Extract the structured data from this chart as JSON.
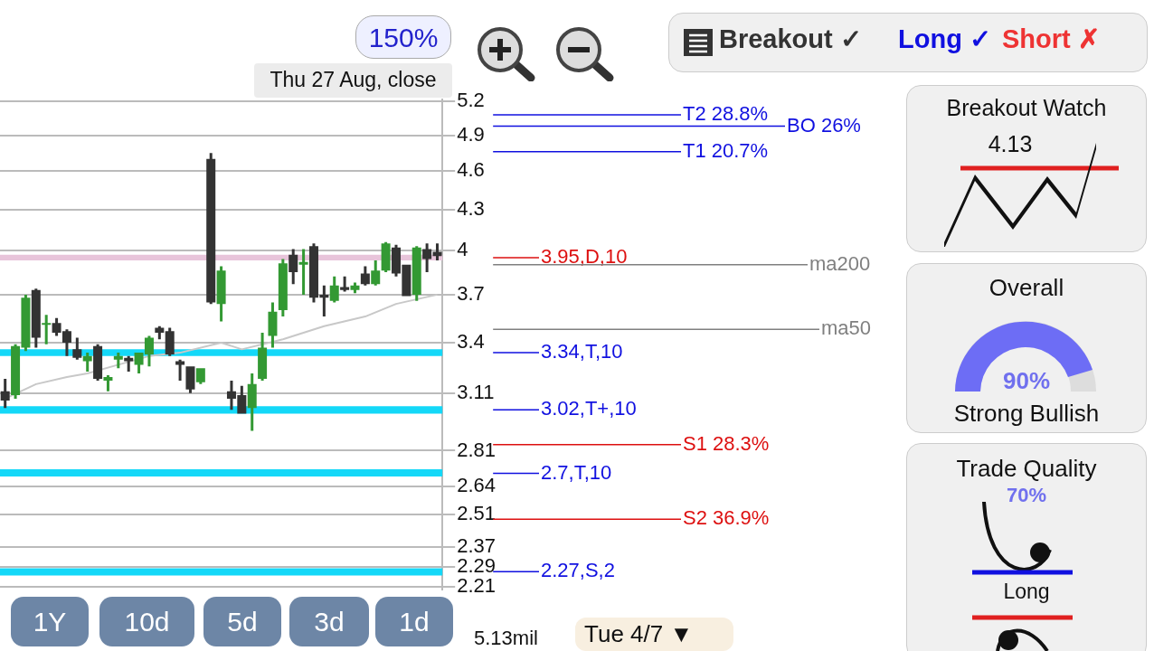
{
  "chart_data": [
    {
      "type": "candlestick",
      "categories": [
        null,
        null,
        null,
        null,
        null,
        null,
        null,
        null,
        null,
        null,
        null,
        null,
        null,
        null,
        null,
        null,
        null,
        null,
        null,
        null,
        null,
        null,
        null,
        null,
        null,
        null,
        null,
        null,
        null,
        null,
        null,
        null,
        null,
        null,
        null,
        null,
        null,
        null,
        null,
        null,
        null,
        null,
        null
      ],
      "ohlc": [
        [
          3.12,
          3.19,
          3.03,
          3.07
        ],
        [
          3.1,
          3.39,
          3.08,
          3.38
        ],
        [
          3.37,
          3.7,
          3.35,
          3.68
        ],
        [
          3.73,
          3.74,
          3.37,
          3.43
        ],
        [
          3.51,
          3.57,
          3.39,
          3.52
        ],
        [
          3.52,
          3.55,
          3.44,
          3.46
        ],
        [
          3.47,
          3.48,
          3.32,
          3.4
        ],
        [
          3.36,
          3.43,
          3.3,
          3.31
        ],
        [
          3.29,
          3.34,
          3.23,
          3.32
        ],
        [
          3.38,
          3.39,
          3.18,
          3.19
        ],
        [
          3.18,
          3.21,
          3.12,
          3.2
        ],
        [
          3.3,
          3.34,
          3.25,
          3.32
        ],
        [
          3.31,
          3.32,
          3.23,
          3.29
        ],
        [
          3.27,
          3.34,
          3.22,
          3.34
        ],
        [
          3.33,
          3.44,
          3.26,
          3.43
        ],
        [
          3.49,
          3.5,
          3.42,
          3.46
        ],
        [
          3.47,
          3.49,
          3.32,
          3.33
        ],
        [
          3.29,
          3.3,
          3.18,
          3.27
        ],
        [
          3.26,
          3.26,
          3.11,
          3.13
        ],
        [
          3.17,
          3.25,
          3.16,
          3.25
        ],
        [
          4.7,
          4.75,
          3.64,
          3.65
        ],
        [
          3.64,
          3.89,
          3.53,
          3.86
        ],
        [
          3.12,
          3.18,
          3.02,
          3.08
        ],
        [
          3.1,
          3.15,
          3.0,
          3.0
        ],
        [
          3.03,
          3.22,
          2.91,
          3.16
        ],
        [
          3.19,
          3.46,
          3.18,
          3.37
        ],
        [
          3.44,
          3.65,
          3.37,
          3.59
        ],
        [
          3.6,
          3.94,
          3.56,
          3.91
        ],
        [
          3.97,
          4.01,
          3.77,
          3.85
        ],
        [
          3.9,
          4.01,
          3.7,
          3.92
        ],
        [
          4.03,
          4.05,
          3.65,
          3.68
        ],
        [
          3.7,
          3.76,
          3.56,
          3.68
        ],
        [
          3.66,
          3.82,
          3.65,
          3.76
        ],
        [
          3.75,
          3.82,
          3.72,
          3.73
        ],
        [
          3.73,
          3.78,
          3.71,
          3.76
        ],
        [
          3.84,
          3.89,
          3.76,
          3.77
        ],
        [
          3.77,
          3.93,
          3.76,
          3.86
        ],
        [
          3.86,
          4.06,
          3.85,
          4.05
        ],
        [
          4.02,
          4.04,
          3.82,
          3.84
        ],
        [
          3.9,
          3.9,
          3.69,
          3.69
        ],
        [
          3.7,
          4.03,
          3.66,
          4.02
        ],
        [
          4.01,
          4.05,
          3.85,
          3.94
        ],
        [
          3.99,
          4.05,
          3.93,
          3.96
        ]
      ],
      "colors": [
        "#333333",
        "#339933",
        "#339933",
        "#333333",
        "#339933",
        "#333333",
        "#333333",
        "#333333",
        "#339933",
        "#333333",
        "#339933",
        "#339933",
        "#333333",
        "#339933",
        "#339933",
        "#333333",
        "#333333",
        "#333333",
        "#333333",
        "#339933",
        "#333333",
        "#339933",
        "#333333",
        "#333333",
        "#339933",
        "#339933",
        "#339933",
        "#339933",
        "#333333",
        "#339933",
        "#333333",
        "#333333",
        "#339933",
        "#333333",
        "#339933",
        "#333333",
        "#339933",
        "#339933",
        "#333333",
        "#333333",
        "#339933",
        "#333333",
        "#333333"
      ],
      "series": [
        {
          "type": "line",
          "color": "#c8c8c8",
          "values": [
            3.08,
            null,
            null,
            3.16,
            null,
            null,
            3.2,
            null,
            3.22,
            null,
            null,
            3.27,
            null,
            null,
            3.32,
            null,
            null,
            3.34,
            null,
            null,
            null,
            3.4,
            null,
            3.36,
            null,
            null,
            null,
            3.42,
            null,
            null,
            null,
            3.5,
            null,
            null,
            null,
            3.56,
            null,
            null,
            3.64,
            null,
            null,
            null,
            3.7
          ]
        }
      ],
      "ylim": [
        2.2,
        5.22
      ],
      "yticks": [
        5.2,
        4.9,
        4.6,
        4.3,
        4,
        3.7,
        3.4,
        3.11,
        2.81,
        2.64,
        2.51,
        2.37,
        2.29,
        2.21
      ],
      "log": true,
      "grid": "y",
      "bands": [
        {
          "axis": "y",
          "from": 3.93,
          "to": 3.97,
          "color": "#e8c4da"
        },
        {
          "axis": "y",
          "from": 3.32,
          "to": 3.36,
          "color": "#14d8f8"
        },
        {
          "axis": "y",
          "from": 3.0,
          "to": 3.04,
          "color": "#14d8f8"
        },
        {
          "axis": "y",
          "from": 2.685,
          "to": 2.72,
          "color": "#14d8f8"
        },
        {
          "axis": "y",
          "from": 2.255,
          "to": 2.284,
          "color": "#14d8f8"
        }
      ],
      "ref_lines": [
        {
          "axis": "y",
          "value": 5.08,
          "label": "T2 28.8%",
          "color": "#1010e0"
        },
        {
          "axis": "y",
          "value": 4.98,
          "label": "BO 26%",
          "color": "#1010e0"
        },
        {
          "axis": "y",
          "value": 4.76,
          "label": "T1 20.7%",
          "color": "#1010e0"
        },
        {
          "axis": "y",
          "value": 3.95,
          "label": "3.95,D,10",
          "color": "#dd1010"
        },
        {
          "axis": "y",
          "value": 3.9,
          "label": "ma200",
          "color": "#808080"
        },
        {
          "axis": "y",
          "value": 3.48,
          "label": "ma50",
          "color": "#808080"
        },
        {
          "axis": "y",
          "value": 3.34,
          "label": "3.34,T,10",
          "color": "#1010e0"
        },
        {
          "axis": "y",
          "value": 3.02,
          "label": "3.02,T+,10",
          "color": "#1010e0"
        },
        {
          "axis": "y",
          "value": 2.84,
          "label": "S1 28.3%",
          "color": "#dd1010"
        },
        {
          "axis": "y",
          "value": 2.7,
          "label": "2.7,T,10",
          "color": "#1010e0"
        },
        {
          "axis": "y",
          "value": 2.49,
          "label": "S2 36.9%",
          "color": "#dd1010"
        },
        {
          "axis": "y",
          "value": 2.27,
          "label": "2.27,S,2",
          "color": "#1010e0"
        }
      ]
    },
    {
      "type": "other",
      "annotations": [
        "150%",
        "Thu 27 Aug, close",
        "Breakout ✓",
        "Long ✓",
        "Short ✗",
        "Breakout Watch",
        "4.13",
        "Overall",
        "90%",
        "Strong Bullish",
        "Trade Quality",
        "70%",
        "Long",
        "1Y",
        "10d",
        "5d",
        "3d",
        "1d",
        "Tue 4/7 ▼",
        "5.13mil"
      ]
    }
  ]
}
